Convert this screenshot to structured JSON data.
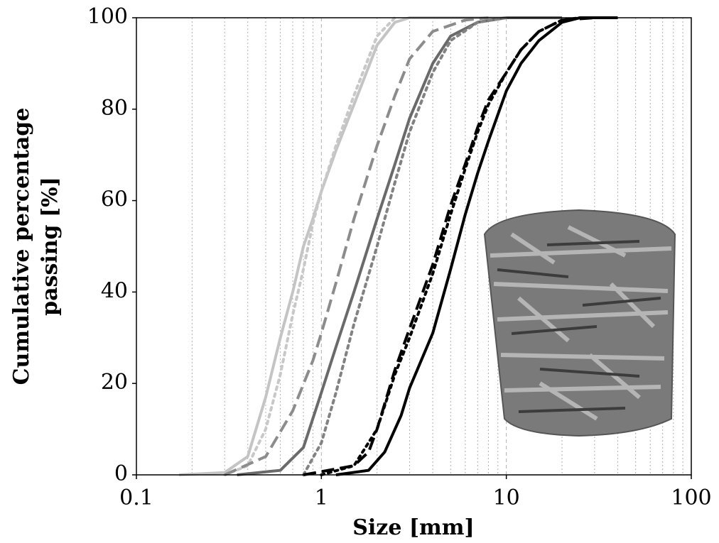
{
  "chart_data": {
    "type": "line",
    "xlabel": "Size [mm]",
    "ylabel": [
      "Cumulative percentage",
      "passing [%]"
    ],
    "xlog": true,
    "xlim": [
      0.1,
      100
    ],
    "xticks": [
      0.1,
      1,
      10,
      100
    ],
    "ylim": [
      0,
      100
    ],
    "yticks": [
      0,
      20,
      40,
      60,
      80,
      100
    ],
    "grid": "x-minor",
    "series": [
      {
        "color": "#c4c4c4",
        "dash": "solid",
        "x": [
          0.17,
          0.3,
          0.4,
          0.5,
          0.6,
          0.7,
          0.8,
          0.9,
          1.0,
          1.2,
          1.5,
          2.0,
          2.5,
          3,
          10
        ],
        "values": [
          0,
          0.5,
          4,
          17,
          30,
          40,
          50,
          56,
          62,
          71,
          81,
          94,
          99,
          100,
          100
        ]
      },
      {
        "color": "#c8c8c8",
        "dash": "dotted",
        "x": [
          0.3,
          0.4,
          0.5,
          0.6,
          0.7,
          0.8,
          0.9,
          1.0,
          1.2,
          1.5,
          2.0,
          2.5
        ],
        "values": [
          0,
          2,
          10,
          22,
          35,
          45,
          55,
          62,
          72,
          83,
          96,
          100
        ]
      },
      {
        "color": "#8c8c8c",
        "dash": "dashed",
        "x": [
          0.3,
          0.5,
          0.7,
          0.9,
          1.0,
          1.2,
          1.5,
          2,
          2.5,
          3,
          4,
          6,
          8
        ],
        "values": [
          0,
          4,
          14,
          25,
          31,
          42,
          56,
          72,
          83,
          91,
          97,
          99.5,
          100
        ]
      },
      {
        "color": "#6a6a6a",
        "dash": "solid",
        "x": [
          0.35,
          0.6,
          0.8,
          1.0,
          1.2,
          1.5,
          2,
          2.5,
          3,
          4,
          5,
          7,
          10,
          20
        ],
        "values": [
          0,
          1,
          6,
          18,
          28,
          40,
          56,
          68,
          78,
          90,
          96,
          99,
          100,
          100
        ]
      },
      {
        "color": "#828282",
        "dash": "dotted",
        "x": [
          0.8,
          1.0,
          1.2,
          1.5,
          2,
          2.5,
          3,
          4,
          5,
          7,
          10
        ],
        "values": [
          0,
          7,
          18,
          33,
          50,
          64,
          75,
          88,
          95,
          99,
          100
        ]
      },
      {
        "color": "#000000",
        "dash": "solid",
        "x": [
          1.2,
          1.8,
          2.2,
          2.7,
          3,
          4,
          5,
          6,
          7,
          8,
          10,
          12,
          15,
          20,
          25,
          40
        ],
        "values": [
          0,
          1,
          5,
          13,
          19,
          31,
          45,
          57,
          66,
          73,
          84,
          90,
          95,
          99,
          100,
          100
        ]
      },
      {
        "color": "#000000",
        "dash": "dashed",
        "x": [
          0.8,
          1.5,
          1.8,
          2,
          2.5,
          3,
          4,
          5,
          6,
          7,
          8,
          10,
          12,
          15,
          20,
          30
        ],
        "values": [
          0,
          2,
          5,
          10,
          23,
          32,
          46,
          59,
          68,
          76,
          82,
          88,
          93,
          97,
          99.5,
          100
        ]
      },
      {
        "color": "#000000",
        "dash": "dotted",
        "x": [
          1.0,
          1.5,
          2,
          2.5,
          3,
          4,
          5,
          6,
          7,
          8,
          10,
          12,
          15,
          20,
          25
        ],
        "values": [
          0,
          2,
          10,
          22,
          30,
          44,
          57,
          67,
          75,
          81,
          88,
          93,
          97,
          99.5,
          100
        ]
      }
    ]
  }
}
